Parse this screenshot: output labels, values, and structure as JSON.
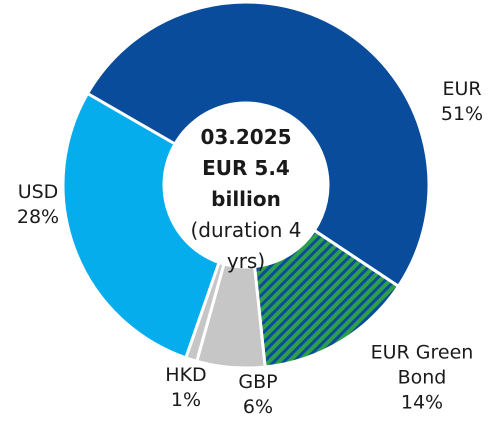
{
  "chart_data": {
    "type": "donut",
    "center_text": [
      "03.2025",
      "EUR 5.4 billion",
      "(duration 4 yrs)"
    ],
    "categories": [
      "EUR",
      "EUR Green Bond",
      "GBP",
      "HKD",
      "USD"
    ],
    "values": [
      51,
      14,
      6,
      1,
      28
    ],
    "value_labels": [
      "51%",
      "14%",
      "6%",
      "1%",
      "28%"
    ],
    "colors": [
      "#0a4c9c",
      "#2f9e4a",
      "#c6c6c6",
      "#c6c6c6",
      "#05adec"
    ]
  }
}
